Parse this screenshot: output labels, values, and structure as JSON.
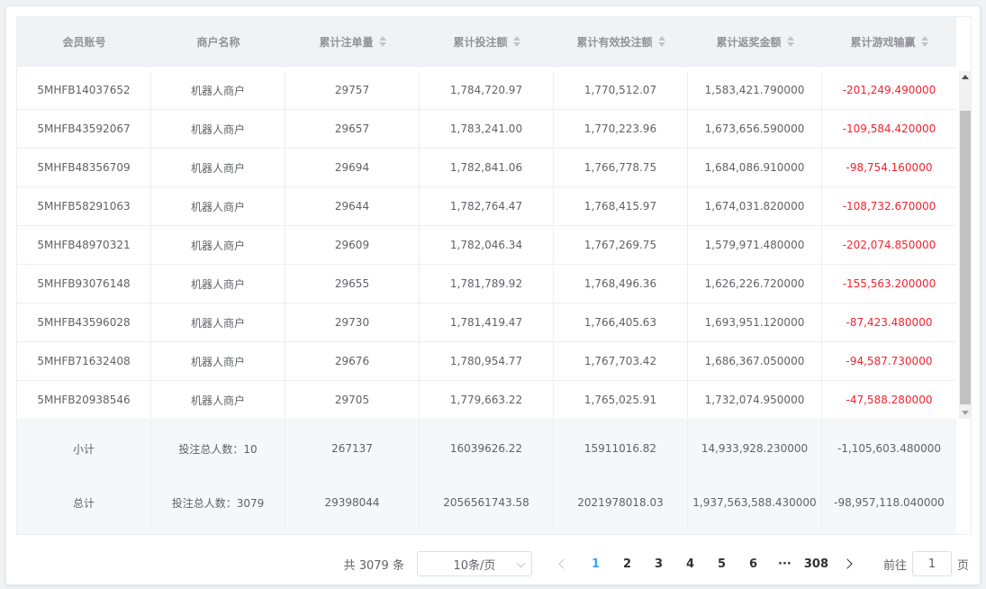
{
  "columns": [
    {
      "label": "会员账号",
      "sortable": false
    },
    {
      "label": "商户名称",
      "sortable": false
    },
    {
      "label": "累计注单量",
      "sortable": true
    },
    {
      "label": "累计投注额",
      "sortable": true
    },
    {
      "label": "累计有效投注额",
      "sortable": true
    },
    {
      "label": "累计返奖金额",
      "sortable": true
    },
    {
      "label": "累计游戏输赢",
      "sortable": true
    }
  ],
  "rows": [
    [
      "5MHFB14037652",
      "机器人商户",
      "29757",
      "1,784,720.97",
      "1,770,512.07",
      "1,583,421.790000",
      "-201,249.490000"
    ],
    [
      "5MHFB43592067",
      "机器人商户",
      "29657",
      "1,783,241.00",
      "1,770,223.96",
      "1,673,656.590000",
      "-109,584.420000"
    ],
    [
      "5MHFB48356709",
      "机器人商户",
      "29694",
      "1,782,841.06",
      "1,766,778.75",
      "1,684,086.910000",
      "-98,754.160000"
    ],
    [
      "5MHFB58291063",
      "机器人商户",
      "29644",
      "1,782,764.47",
      "1,768,415.97",
      "1,674,031.820000",
      "-108,732.670000"
    ],
    [
      "5MHFB48970321",
      "机器人商户",
      "29609",
      "1,782,046.34",
      "1,767,269.75",
      "1,579,971.480000",
      "-202,074.850000"
    ],
    [
      "5MHFB93076148",
      "机器人商户",
      "29655",
      "1,781,789.92",
      "1,768,496.36",
      "1,626,226.720000",
      "-155,563.200000"
    ],
    [
      "5MHFB43596028",
      "机器人商户",
      "29730",
      "1,781,419.47",
      "1,766,405.63",
      "1,693,951.120000",
      "-87,423.480000"
    ],
    [
      "5MHFB71632408",
      "机器人商户",
      "29676",
      "1,780,954.77",
      "1,767,703.42",
      "1,686,367.050000",
      "-94,587.730000"
    ],
    [
      "5MHFB20938546",
      "机器人商户",
      "29705",
      "1,779,663.22",
      "1,765,025.91",
      "1,732,074.950000",
      "-47,588.280000"
    ]
  ],
  "summary": [
    [
      "小计",
      "投注总人数：10",
      "267137",
      "16039626.22",
      "15911016.82",
      "14,933,928.230000",
      "-1,105,603.480000"
    ],
    [
      "总计",
      "投注总人数：3079",
      "29398044",
      "2056561743.58",
      "2021978018.03",
      "1,937,563,588.430000",
      "-98,957,118.040000"
    ]
  ],
  "pagination": {
    "total_text": "共 3079 条",
    "page_size": "10条/页",
    "pages": [
      "1",
      "2",
      "3",
      "4",
      "5",
      "6"
    ],
    "ellipsis": "···",
    "last_page": "308",
    "current": "1",
    "goto_label": "前往",
    "goto_value": "1",
    "goto_suffix": "页"
  },
  "colors": {
    "negative": "#f5222d",
    "active_page": "#409eff",
    "header_bg": "#f0f2f5"
  }
}
